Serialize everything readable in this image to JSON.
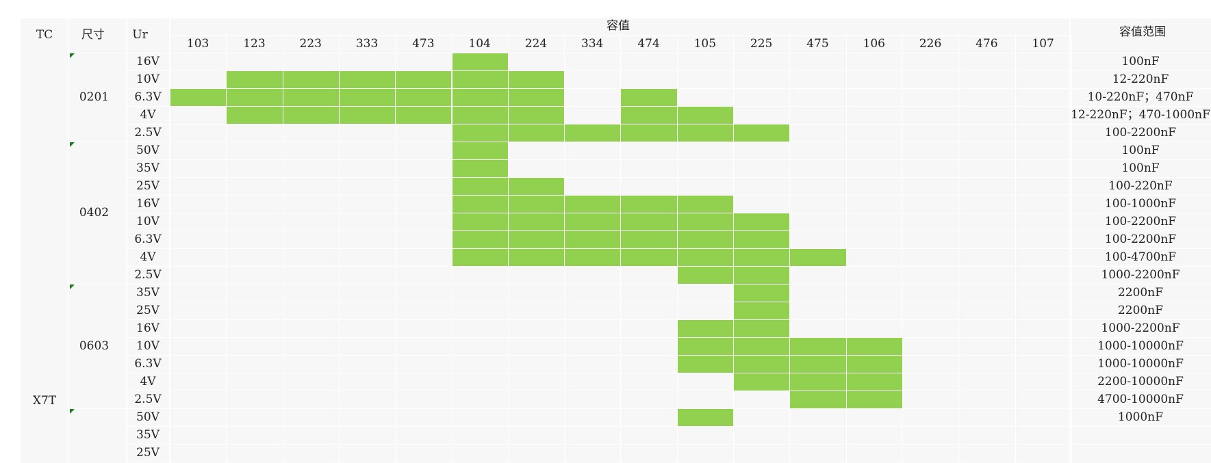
{
  "headers": {
    "tc": "TC",
    "size": "尺寸",
    "ur": "Ur",
    "capacitance": "容值",
    "range": "容值范围"
  },
  "cap_codes": [
    "103",
    "123",
    "223",
    "333",
    "473",
    "104",
    "224",
    "334",
    "474",
    "105",
    "225",
    "475",
    "106",
    "226",
    "476",
    "107"
  ],
  "tc_value": "X7T",
  "rows": [
    {
      "size": "0201",
      "ur": "16V",
      "range": "100nF",
      "filled": [
        5
      ]
    },
    {
      "size": "",
      "ur": "10V",
      "range": "12-220nF",
      "filled": [
        1,
        2,
        3,
        4,
        5,
        6
      ]
    },
    {
      "size": "",
      "ur": "6.3V",
      "range": "10-220nF；470nF",
      "filled": [
        0,
        1,
        2,
        3,
        4,
        5,
        6,
        8
      ]
    },
    {
      "size": "",
      "ur": "4V",
      "range": "12-220nF；470-1000nF",
      "filled": [
        1,
        2,
        3,
        4,
        5,
        6,
        8,
        9
      ]
    },
    {
      "size": "",
      "ur": "2.5V",
      "range": "100-2200nF",
      "filled": [
        5,
        6,
        7,
        8,
        9,
        10
      ]
    },
    {
      "size": "0402",
      "ur": "50V",
      "range": "100nF",
      "filled": [
        5
      ]
    },
    {
      "size": "",
      "ur": "35V",
      "range": "100nF",
      "filled": [
        5
      ]
    },
    {
      "size": "",
      "ur": "25V",
      "range": "100-220nF",
      "filled": [
        5,
        6
      ]
    },
    {
      "size": "",
      "ur": "16V",
      "range": "100-1000nF",
      "filled": [
        5,
        6,
        7,
        8,
        9
      ]
    },
    {
      "size": "",
      "ur": "10V",
      "range": "100-2200nF",
      "filled": [
        5,
        6,
        7,
        8,
        9,
        10
      ]
    },
    {
      "size": "",
      "ur": "6.3V",
      "range": "100-2200nF",
      "filled": [
        5,
        6,
        7,
        8,
        9,
        10
      ]
    },
    {
      "size": "",
      "ur": "4V",
      "range": "100-4700nF",
      "filled": [
        5,
        6,
        7,
        8,
        9,
        10,
        11
      ]
    },
    {
      "size": "",
      "ur": "2.5V",
      "range": "1000-2200nF",
      "filled": [
        9,
        10
      ]
    },
    {
      "size": "0603",
      "ur": "35V",
      "range": "2200nF",
      "filled": [
        10
      ]
    },
    {
      "size": "",
      "ur": "25V",
      "range": "2200nF",
      "filled": [
        10
      ]
    },
    {
      "size": "",
      "ur": "16V",
      "range": "1000-2200nF",
      "filled": [
        9,
        10
      ]
    },
    {
      "size": "",
      "ur": "10V",
      "range": "1000-10000nF",
      "filled": [
        9,
        10,
        11,
        12
      ]
    },
    {
      "size": "",
      "ur": "6.3V",
      "range": "1000-10000nF",
      "filled": [
        9,
        10,
        11,
        12
      ]
    },
    {
      "size": "",
      "ur": "4V",
      "range": "2200-10000nF",
      "filled": [
        10,
        11,
        12
      ]
    },
    {
      "size": "",
      "ur": "2.5V",
      "range": "4700-10000nF",
      "filled": [
        11,
        12
      ]
    },
    {
      "size": "",
      "ur": "50V",
      "range": "1000nF",
      "filled": [
        9
      ]
    },
    {
      "size": "",
      "ur": "35V",
      "range": "",
      "filled": []
    },
    {
      "size": "",
      "ur": "25V",
      "range": "",
      "filled": []
    }
  ],
  "size_groups": [
    {
      "label": "0201",
      "start": 0,
      "end": 4
    },
    {
      "label": "0402",
      "start": 5,
      "end": 12
    },
    {
      "label": "0603",
      "start": 13,
      "end": 19
    },
    {
      "label": "",
      "start": 20,
      "end": 22
    }
  ],
  "colors": {
    "fill": "#92d050",
    "background": "#f7f7f7",
    "marker": "#1e7b1e"
  }
}
